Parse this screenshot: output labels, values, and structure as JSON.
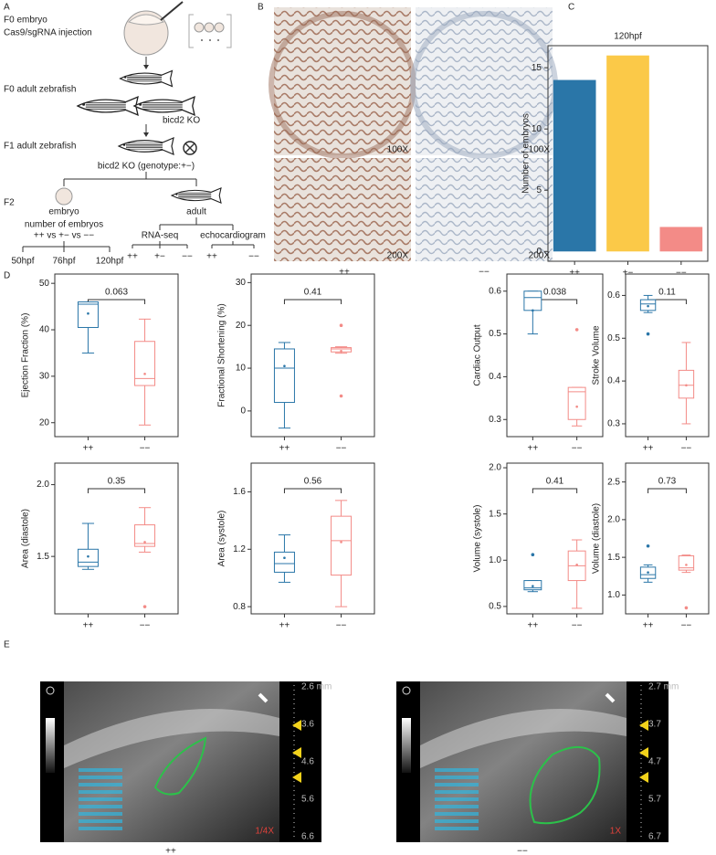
{
  "panel_labels": [
    "A",
    "B",
    "C",
    "D",
    "E"
  ],
  "panel_a": {
    "f0_embryo": "F0 embryo",
    "injection": "Cas9/sgRNA injection",
    "f0_adult": "F0 adult zebrafish",
    "ko1": "bicd2 KO",
    "f1_adult": "F1 adult zebrafish",
    "ko2": "bicd2 KO (genotype:+−)",
    "f2": "F2",
    "embryo": "embryo",
    "adult": "adult",
    "count_title": "number of embryos",
    "count_compare": "++ vs +− vs −−",
    "stages": [
      "50hpf",
      "76hpf",
      "120hpf"
    ],
    "rna_seq": "RNA-seq",
    "echo": "echocardiogram",
    "rna_groups": [
      "++",
      "+−",
      "−−"
    ],
    "echo_groups": [
      "++",
      "−−"
    ]
  },
  "panel_b": {
    "magnifications": [
      "100X",
      "100X",
      "200X",
      "200X"
    ],
    "groups": [
      "++",
      "−−"
    ]
  },
  "chart_data": [
    {
      "type": "bar",
      "title": "120hpf",
      "ylabel": "Number of embryos",
      "categories": [
        "++",
        "+−",
        "−−"
      ],
      "values": [
        14,
        16,
        2
      ],
      "colors": [
        "#2a76a8",
        "#fbc948",
        "#f38b87"
      ],
      "ylim": [
        -0.8,
        16.8
      ],
      "yticks": [
        0,
        5,
        10,
        15
      ]
    },
    {
      "type": "box",
      "ylabel": "Ejection Fraction (%)",
      "p_value": "0.063",
      "categories": [
        "++",
        "−−"
      ],
      "ylim": [
        17,
        52
      ],
      "yticks": [
        20,
        30,
        40,
        50
      ],
      "boxes": [
        {
          "color": "#2a76a8",
          "min": 35,
          "q1": 40.5,
          "median": 45.5,
          "q3": 46,
          "max": 46,
          "mean": 43.5,
          "outliers": []
        },
        {
          "color": "#f38b87",
          "min": 19.5,
          "q1": 28,
          "median": 29.5,
          "q3": 37.5,
          "max": 42.3,
          "mean": 30.5,
          "outliers": []
        }
      ]
    },
    {
      "type": "box",
      "ylabel": "Fractional Shortening (%)",
      "p_value": "0.41",
      "categories": [
        "++",
        "−−"
      ],
      "ylim": [
        -6,
        32
      ],
      "yticks": [
        0,
        10,
        20,
        30
      ],
      "boxes": [
        {
          "color": "#2a76a8",
          "min": -4,
          "q1": 2,
          "median": 10,
          "q3": 14.5,
          "max": 16,
          "mean": 10.5,
          "outliers": []
        },
        {
          "color": "#f38b87",
          "min": 13.5,
          "q1": 13.8,
          "median": 14.5,
          "q3": 14.8,
          "max": 15,
          "mean": 14,
          "outliers": [
            20,
            3.5
          ]
        }
      ]
    },
    {
      "type": "box",
      "ylabel": "Cardiac Output",
      "p_value": "0.038",
      "categories": [
        "++",
        "−−"
      ],
      "ylim": [
        0.26,
        0.64
      ],
      "yticks": [
        0.3,
        0.4,
        0.5,
        0.6
      ],
      "boxes": [
        {
          "color": "#2a76a8",
          "min": 0.5,
          "q1": 0.555,
          "median": 0.585,
          "q3": 0.6,
          "max": 0.6,
          "mean": 0.555,
          "outliers": []
        },
        {
          "color": "#f38b87",
          "min": 0.285,
          "q1": 0.3,
          "median": 0.365,
          "q3": 0.375,
          "max": 0.375,
          "mean": 0.33,
          "outliers": [
            0.51
          ]
        }
      ]
    },
    {
      "type": "box",
      "ylabel": "Stroke Volume",
      "p_value": "0.11",
      "categories": [
        "++",
        "−−"
      ],
      "ylim": [
        0.27,
        0.65
      ],
      "yticks": [
        0.3,
        0.4,
        0.5,
        0.6
      ],
      "boxes": [
        {
          "color": "#2a76a8",
          "min": 0.56,
          "q1": 0.565,
          "median": 0.58,
          "q3": 0.59,
          "max": 0.6,
          "mean": 0.575,
          "outliers": [
            0.51
          ]
        },
        {
          "color": "#f38b87",
          "min": 0.3,
          "q1": 0.36,
          "median": 0.39,
          "q3": 0.425,
          "max": 0.49,
          "mean": 0.39,
          "outliers": []
        }
      ]
    },
    {
      "type": "box",
      "ylabel": "Area (diastole)",
      "p_value": "0.35",
      "categories": [
        "++",
        "−−"
      ],
      "ylim": [
        1.1,
        2.15
      ],
      "yticks": [
        1.5,
        {
          "value": 2,
          "label": "2.0"
        }
      ],
      "boxes": [
        {
          "color": "#2a76a8",
          "min": 1.41,
          "q1": 1.43,
          "median": 1.46,
          "q3": 1.55,
          "max": 1.73,
          "mean": 1.5,
          "outliers": []
        },
        {
          "color": "#f38b87",
          "min": 1.53,
          "q1": 1.57,
          "median": 1.59,
          "q3": 1.72,
          "max": 1.84,
          "mean": 1.6,
          "outliers": [
            1.15
          ]
        }
      ]
    },
    {
      "type": "box",
      "ylabel": "Area (systole)",
      "p_value": "0.56",
      "categories": [
        "++",
        "−−"
      ],
      "ylim": [
        0.75,
        1.8
      ],
      "yticks": [
        0.8,
        1.2,
        1.6
      ],
      "boxes": [
        {
          "color": "#2a76a8",
          "min": 0.97,
          "q1": 1.04,
          "median": 1.1,
          "q3": 1.18,
          "max": 1.3,
          "mean": 1.14,
          "outliers": []
        },
        {
          "color": "#f38b87",
          "min": 0.8,
          "q1": 1.02,
          "median": 1.26,
          "q3": 1.43,
          "max": 1.54,
          "mean": 1.25,
          "outliers": []
        }
      ]
    },
    {
      "type": "box",
      "ylabel": "Volume (systole)",
      "p_value": "0.41",
      "categories": [
        "++",
        "−−"
      ],
      "ylim": [
        0.42,
        2.05
      ],
      "yticks": [
        0.5,
        {
          "value": 1,
          "label": "1.0"
        },
        1.5,
        {
          "value": 2,
          "label": "2.0"
        }
      ],
      "boxes": [
        {
          "color": "#2a76a8",
          "min": 0.66,
          "q1": 0.68,
          "median": 0.7,
          "q3": 0.78,
          "max": 0.78,
          "mean": 0.72,
          "outliers": [
            1.06
          ]
        },
        {
          "color": "#f38b87",
          "min": 0.48,
          "q1": 0.78,
          "median": 0.94,
          "q3": 1.1,
          "max": 1.22,
          "mean": 0.95,
          "outliers": []
        }
      ]
    },
    {
      "type": "box",
      "ylabel": "Volume (diastole)",
      "p_value": "0.73",
      "categories": [
        "++",
        "−−"
      ],
      "ylim": [
        0.75,
        2.75
      ],
      "yticks": [
        {
          "value": 1,
          "label": "1.0"
        },
        1.5,
        {
          "value": 2,
          "label": "2.0"
        },
        2.5
      ],
      "boxes": [
        {
          "color": "#2a76a8",
          "min": 1.17,
          "q1": 1.22,
          "median": 1.27,
          "q3": 1.37,
          "max": 1.4,
          "mean": 1.3,
          "outliers": [
            1.65
          ]
        },
        {
          "color": "#f38b87",
          "min": 1.3,
          "q1": 1.33,
          "median": 1.36,
          "q3": 1.52,
          "max": 1.53,
          "mean": 1.4,
          "outliers": [
            0.83
          ]
        }
      ]
    }
  ],
  "panel_e": {
    "left": {
      "scale": [
        "2.6 mm",
        "3.6",
        "4.6",
        "5.6",
        "6.6"
      ],
      "zoom": "1/4X",
      "group": "++"
    },
    "right": {
      "scale": [
        "2.7 mm",
        "3.7",
        "4.7",
        "5.7",
        "6.7"
      ],
      "zoom": "1X",
      "group": "−−"
    }
  }
}
